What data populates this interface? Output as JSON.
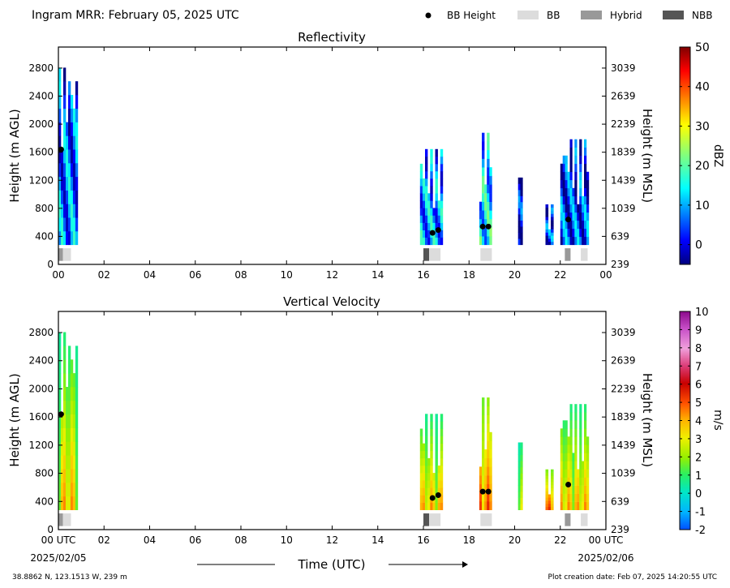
{
  "header": {
    "title": "Ingram MRR:  February 05, 2025 UTC",
    "legend": [
      {
        "label": "BB Height",
        "kind": "dot",
        "color": "#000000"
      },
      {
        "label": "BB",
        "kind": "swatch",
        "color": "#dcdcdc"
      },
      {
        "label": "Hybrid",
        "kind": "swatch",
        "color": "#999999"
      },
      {
        "label": "NBB",
        "kind": "swatch",
        "color": "#555555"
      }
    ]
  },
  "footer": {
    "location": "38.8862 N, 123.1513 W, 239 m",
    "creation": "Plot creation date: Feb 07, 2025 14:20:55 UTC",
    "xlabel": "Time (UTC)",
    "start_date": "2025/02/05",
    "end_date": "2025/02/06"
  },
  "chart_data": [
    {
      "type": "heatmap",
      "title": "Reflectivity",
      "ylabel": "Height (m AGL)",
      "y2label": "Height (m MSL)",
      "xlim": [
        0,
        24
      ],
      "ylim": [
        0,
        3100
      ],
      "x_ticks": [
        "00",
        "02",
        "04",
        "06",
        "08",
        "10",
        "12",
        "14",
        "16",
        "18",
        "20",
        "22",
        "00"
      ],
      "y_ticks": [
        0,
        400,
        800,
        1200,
        1600,
        2000,
        2400,
        2800
      ],
      "y2_ticks": [
        "239",
        "639",
        "1039",
        "1439",
        "1839",
        "2239",
        "2639",
        "3039"
      ],
      "colorbar": {
        "label": "dBZ",
        "min": -5,
        "max": 50,
        "ticks": [
          0,
          10,
          20,
          30,
          40,
          50
        ],
        "palette": "jet"
      },
      "echoes": [
        {
          "t0": 0.0,
          "t1": 0.85,
          "h0": 280,
          "h1": 3000,
          "value": 8
        },
        {
          "t0": 15.85,
          "t1": 16.85,
          "h0": 280,
          "h1": 1750,
          "value": 10
        },
        {
          "t0": 18.45,
          "t1": 19.0,
          "h0": 280,
          "h1": 2000,
          "value": 14
        },
        {
          "t0": 20.15,
          "t1": 20.35,
          "h0": 280,
          "h1": 1500,
          "value": 2
        },
        {
          "t0": 21.35,
          "t1": 21.7,
          "h0": 280,
          "h1": 900,
          "value": 4
        },
        {
          "t0": 22.0,
          "t1": 23.25,
          "h0": 280,
          "h1": 1900,
          "value": 5
        }
      ],
      "bb_points": [
        {
          "t": 0.12,
          "h": 1640
        },
        {
          "t": 16.4,
          "h": 450
        },
        {
          "t": 16.65,
          "h": 490
        },
        {
          "t": 18.6,
          "h": 540
        },
        {
          "t": 18.85,
          "h": 540
        },
        {
          "t": 22.35,
          "h": 640
        }
      ],
      "bb_flags": [
        {
          "t0": 0.0,
          "t1": 0.2,
          "kind": "Hybrid"
        },
        {
          "t0": 0.2,
          "t1": 0.55,
          "kind": "BB"
        },
        {
          "t0": 16.0,
          "t1": 16.25,
          "kind": "NBB"
        },
        {
          "t0": 16.25,
          "t1": 16.75,
          "kind": "BB"
        },
        {
          "t0": 18.5,
          "t1": 19.0,
          "kind": "BB"
        },
        {
          "t0": 22.2,
          "t1": 22.45,
          "kind": "Hybrid"
        },
        {
          "t0": 22.9,
          "t1": 23.2,
          "kind": "BB"
        }
      ]
    },
    {
      "type": "heatmap",
      "title": "Vertical Velocity",
      "ylabel": "Height (m AGL)",
      "y2label": "Height (m MSL)",
      "xlim": [
        0,
        24
      ],
      "ylim": [
        0,
        3100
      ],
      "x_ticks": [
        "00 UTC",
        "02",
        "04",
        "06",
        "08",
        "10",
        "12",
        "14",
        "16",
        "18",
        "20",
        "22",
        "00 UTC"
      ],
      "y_ticks": [
        0,
        400,
        800,
        1200,
        1600,
        2000,
        2400,
        2800
      ],
      "y2_ticks": [
        "239",
        "639",
        "1039",
        "1439",
        "1839",
        "2239",
        "2639",
        "3039"
      ],
      "colorbar": {
        "label": "m/s",
        "min": -2,
        "max": 10,
        "ticks": [
          -2,
          -1,
          0,
          1,
          2,
          3,
          4,
          5,
          6,
          7,
          8,
          9,
          10
        ],
        "palette": "velocity"
      },
      "echoes": [
        {
          "t0": 0.0,
          "t1": 0.85,
          "h0": 280,
          "h1": 3000,
          "value": 1.5
        },
        {
          "t0": 15.85,
          "t1": 16.85,
          "h0": 280,
          "h1": 1750,
          "value": 1.5
        },
        {
          "t0": 18.45,
          "t1": 19.0,
          "h0": 280,
          "h1": 2000,
          "value": 2.5
        },
        {
          "t0": 20.15,
          "t1": 20.35,
          "h0": 280,
          "h1": 1500,
          "value": 1.0
        },
        {
          "t0": 21.35,
          "t1": 21.7,
          "h0": 280,
          "h1": 900,
          "value": 2.5
        },
        {
          "t0": 22.0,
          "t1": 23.25,
          "h0": 280,
          "h1": 1900,
          "value": 1.5
        }
      ],
      "bb_points": [
        {
          "t": 0.12,
          "h": 1640
        },
        {
          "t": 16.4,
          "h": 450
        },
        {
          "t": 16.65,
          "h": 490
        },
        {
          "t": 18.6,
          "h": 540
        },
        {
          "t": 18.85,
          "h": 540
        },
        {
          "t": 22.35,
          "h": 640
        }
      ],
      "bb_flags": [
        {
          "t0": 0.0,
          "t1": 0.2,
          "kind": "Hybrid"
        },
        {
          "t0": 0.2,
          "t1": 0.55,
          "kind": "BB"
        },
        {
          "t0": 16.0,
          "t1": 16.25,
          "kind": "NBB"
        },
        {
          "t0": 16.25,
          "t1": 16.75,
          "kind": "BB"
        },
        {
          "t0": 18.5,
          "t1": 19.0,
          "kind": "BB"
        },
        {
          "t0": 22.2,
          "t1": 22.45,
          "kind": "Hybrid"
        },
        {
          "t0": 22.9,
          "t1": 23.2,
          "kind": "BB"
        }
      ]
    }
  ]
}
